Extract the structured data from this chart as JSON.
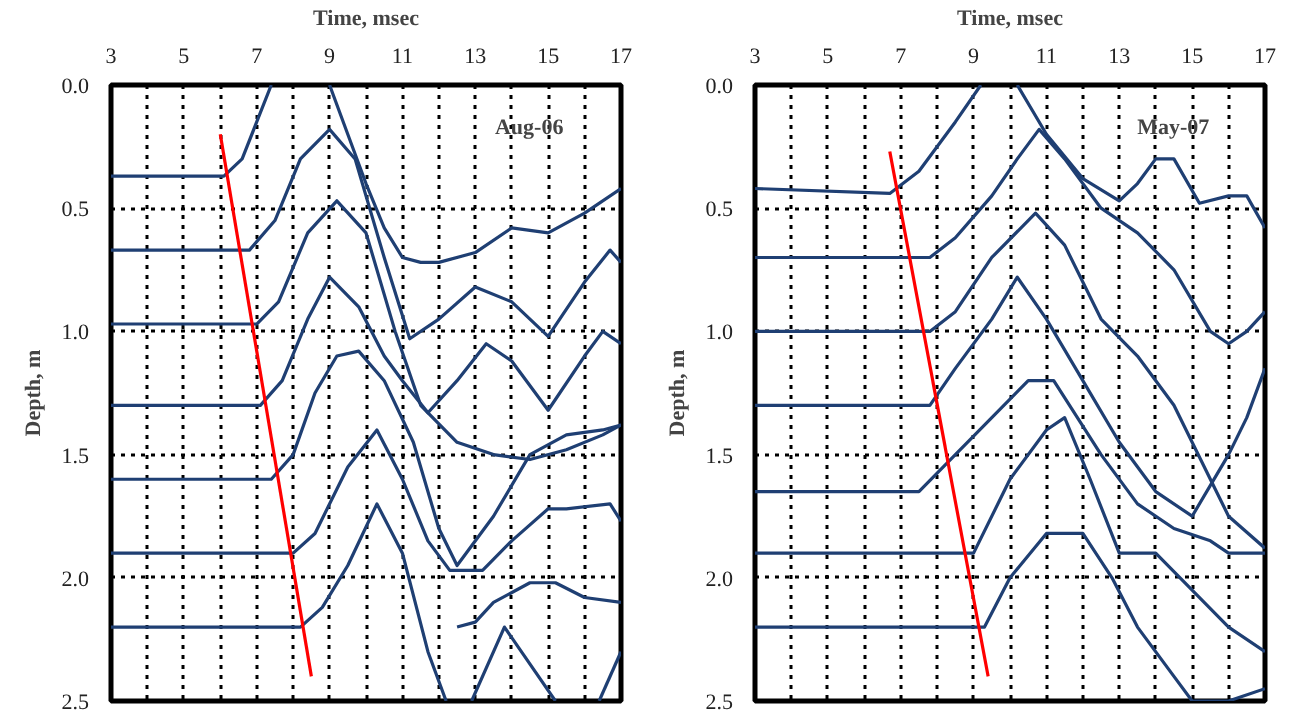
{
  "chart_data": [
    {
      "type": "line",
      "xlabel": "Time, msec",
      "ylabel": "Depth, m",
      "annotations": [
        "Aug-06"
      ],
      "xlim": [
        3,
        17
      ],
      "xticks": [
        3,
        {
          "value": 4,
          "label": null
        },
        5,
        {
          "value": 6,
          "label": null
        },
        7,
        {
          "value": 8,
          "label": null
        },
        9,
        {
          "value": 10,
          "label": null
        },
        11,
        {
          "value": 12,
          "label": null
        },
        13,
        {
          "value": 14,
          "label": null
        },
        15,
        {
          "value": 16,
          "label": null
        },
        17
      ],
      "ylim": [
        2.5,
        0
      ],
      "yticks": [
        {
          "value": 0,
          "label": "0.0"
        },
        0.5,
        {
          "value": 1,
          "label": "1.0"
        },
        1.5,
        {
          "value": 2,
          "label": "2.0"
        },
        2.5
      ],
      "grid": true,
      "line_style": "solid",
      "series": [
        {
          "color": "#1f3f73",
          "x": [
            3,
            6.1,
            6.6,
            7.0,
            7.4
          ],
          "values": [
            0.37,
            0.37,
            0.3,
            0.15,
            0.0
          ]
        },
        {
          "color": "#1f3f73",
          "x": [
            9,
            9.5,
            10,
            10.5,
            11,
            11.5,
            12,
            13,
            14,
            15,
            16,
            17
          ],
          "values": [
            0.0,
            0.2,
            0.4,
            0.58,
            0.7,
            0.72,
            0.72,
            0.68,
            0.58,
            0.6,
            0.52,
            0.42
          ]
        },
        {
          "color": "#1f3f73",
          "x": [
            3,
            6.8,
            7.5,
            8.2,
            9,
            9.7,
            10.5,
            11.2,
            12,
            13,
            14,
            15,
            16,
            16.7,
            17
          ],
          "values": [
            0.67,
            0.67,
            0.55,
            0.3,
            0.18,
            0.3,
            0.7,
            1.03,
            0.95,
            0.82,
            0.88,
            1.02,
            0.8,
            0.67,
            0.72
          ]
        },
        {
          "color": "#1f3f73",
          "x": [
            3,
            7,
            7.6,
            8.4,
            9.2,
            10,
            10.8,
            11.5,
            12.5,
            13.5,
            14.5,
            15.5,
            16.5,
            17
          ],
          "values": [
            0.97,
            0.97,
            0.88,
            0.6,
            0.47,
            0.6,
            1.0,
            1.3,
            1.45,
            1.5,
            1.52,
            1.48,
            1.42,
            1.38
          ]
        },
        {
          "color": "#1f3f73",
          "x": [
            3,
            7.1,
            7.7,
            8.4,
            9,
            9.8,
            10.5,
            11,
            11.7,
            12.5,
            13.3,
            14,
            15,
            16,
            16.5,
            17
          ],
          "values": [
            1.3,
            1.3,
            1.2,
            0.95,
            0.78,
            0.9,
            1.1,
            1.2,
            1.33,
            1.2,
            1.05,
            1.12,
            1.32,
            1.1,
            1.0,
            1.05
          ]
        },
        {
          "color": "#1f3f73",
          "x": [
            3,
            7.4,
            8.0,
            8.6,
            9.2,
            9.8,
            10.5,
            11.3,
            12,
            12.5,
            13.5,
            14.5,
            15.5,
            16.5,
            17
          ],
          "values": [
            1.6,
            1.6,
            1.5,
            1.25,
            1.1,
            1.08,
            1.2,
            1.45,
            1.8,
            1.95,
            1.75,
            1.5,
            1.42,
            1.4,
            1.38
          ]
        },
        {
          "color": "#1f3f73",
          "x": [
            3,
            8,
            8.6,
            9.5,
            10.3,
            11,
            11.7,
            12.3,
            13.2,
            14,
            15,
            15.5,
            16.7,
            17
          ],
          "values": [
            1.9,
            1.9,
            1.82,
            1.55,
            1.4,
            1.6,
            1.85,
            1.97,
            1.97,
            1.85,
            1.72,
            1.72,
            1.7,
            1.77
          ]
        },
        {
          "color": "#1f3f73",
          "x": [
            3,
            8.2,
            8.8,
            9.5,
            10.3,
            11,
            11.7,
            12.2
          ],
          "values": [
            2.2,
            2.2,
            2.12,
            1.95,
            1.7,
            1.9,
            2.3,
            2.5
          ]
        },
        {
          "color": "#1f3f73",
          "x": [
            12.5,
            13,
            13.5,
            14.5,
            15.2,
            16,
            17
          ],
          "values": [
            2.2,
            2.18,
            2.1,
            2.02,
            2.02,
            2.08,
            2.1
          ]
        },
        {
          "color": "#1f3f73",
          "x": [
            12.9,
            13.8,
            15.2
          ],
          "values": [
            2.5,
            2.2,
            2.5
          ]
        },
        {
          "color": "#1f3f73",
          "x": [
            16.4,
            17
          ],
          "values": [
            2.5,
            2.3
          ]
        },
        {
          "color": "#ff0000",
          "x": [
            6.0,
            8.5
          ],
          "values": [
            0.2,
            2.4
          ]
        }
      ]
    },
    {
      "type": "line",
      "xlabel": "Time, msec",
      "ylabel": "Depth, m",
      "annotations": [
        "May-07"
      ],
      "xlim": [
        3,
        17
      ],
      "xticks": [
        3,
        {
          "value": 4,
          "label": null
        },
        5,
        {
          "value": 6,
          "label": null
        },
        7,
        {
          "value": 8,
          "label": null
        },
        9,
        {
          "value": 10,
          "label": null
        },
        11,
        {
          "value": 12,
          "label": null
        },
        13,
        {
          "value": 14,
          "label": null
        },
        15,
        {
          "value": 16,
          "label": null
        },
        17
      ],
      "ylim": [
        2.5,
        0
      ],
      "yticks": [
        {
          "value": 0,
          "label": "0.0"
        },
        0.5,
        {
          "value": 1,
          "label": "1.0"
        },
        1.5,
        {
          "value": 2,
          "label": "2.0"
        },
        2.5
      ],
      "grid": true,
      "line_style": "solid",
      "series": [
        {
          "color": "#1f3f73",
          "x": [
            3,
            6.7,
            7.5,
            8.5,
            9.2
          ],
          "values": [
            0.42,
            0.44,
            0.35,
            0.15,
            0.0
          ]
        },
        {
          "color": "#1f3f73",
          "x": [
            10.2,
            11,
            12,
            13,
            13.5,
            14,
            14.5,
            15.2,
            16,
            16.5,
            17
          ],
          "values": [
            0.0,
            0.2,
            0.38,
            0.47,
            0.4,
            0.3,
            0.3,
            0.48,
            0.45,
            0.45,
            0.58
          ]
        },
        {
          "color": "#1f3f73",
          "x": [
            3,
            7.8,
            8.5,
            9.5,
            10.2,
            10.8,
            11.5,
            12.5,
            13.5,
            14.5,
            15.5,
            16,
            16.5,
            17
          ],
          "values": [
            0.7,
            0.7,
            0.62,
            0.45,
            0.3,
            0.18,
            0.3,
            0.5,
            0.6,
            0.75,
            1.0,
            1.05,
            1.0,
            0.92
          ]
        },
        {
          "color": "#1f3f73",
          "x": [
            3,
            7.8,
            8.5,
            9.5,
            10.7,
            11.5,
            12.5,
            13.5,
            14.5,
            15.5,
            16,
            17
          ],
          "values": [
            1.0,
            1.0,
            0.92,
            0.7,
            0.52,
            0.65,
            0.95,
            1.1,
            1.3,
            1.6,
            1.75,
            1.88
          ]
        },
        {
          "color": "#1f3f73",
          "x": [
            3,
            7.8,
            8.5,
            9.5,
            10.2,
            11,
            12,
            13,
            14,
            15,
            16,
            16.5,
            17
          ],
          "values": [
            1.3,
            1.3,
            1.15,
            0.95,
            0.78,
            0.95,
            1.2,
            1.45,
            1.65,
            1.75,
            1.5,
            1.35,
            1.15
          ]
        },
        {
          "color": "#1f3f73",
          "x": [
            3,
            7.5,
            8.5,
            9.5,
            10.5,
            11.2,
            12.5,
            13.5,
            14.5,
            15.5,
            16,
            17
          ],
          "values": [
            1.65,
            1.65,
            1.5,
            1.35,
            1.2,
            1.2,
            1.5,
            1.7,
            1.8,
            1.85,
            1.9,
            1.9
          ]
        },
        {
          "color": "#1f3f73",
          "x": [
            3,
            9,
            10,
            11,
            11.5,
            12.2,
            13,
            14,
            15,
            16,
            17
          ],
          "values": [
            1.9,
            1.9,
            1.6,
            1.4,
            1.35,
            1.6,
            1.9,
            1.9,
            2.05,
            2.2,
            2.3
          ]
        },
        {
          "color": "#1f3f73",
          "x": [
            3,
            9.3,
            10,
            11,
            12,
            12.8,
            13.5,
            14.5,
            15,
            16,
            17
          ],
          "values": [
            2.2,
            2.2,
            2.0,
            1.82,
            1.82,
            2.0,
            2.2,
            2.4,
            2.5,
            2.5,
            2.45
          ]
        },
        {
          "color": "#ff0000",
          "x": [
            6.7,
            9.4
          ],
          "values": [
            0.27,
            2.4
          ]
        }
      ]
    }
  ]
}
